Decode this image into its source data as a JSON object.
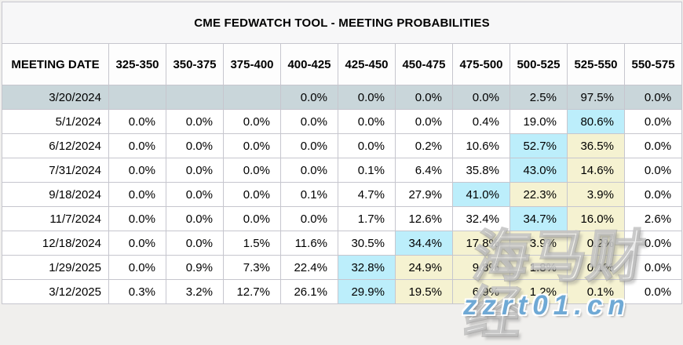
{
  "title": "CME FEDWATCH TOOL - MEETING PROBABILITIES",
  "columns": [
    "MEETING DATE",
    "325-350",
    "350-375",
    "375-400",
    "400-425",
    "425-450",
    "450-475",
    "475-500",
    "500-525",
    "525-550",
    "550-575"
  ],
  "rows": [
    {
      "date": "3/20/2024",
      "selected": true,
      "values": [
        "",
        "",
        "",
        "0.0%",
        "0.0%",
        "0.0%",
        "0.0%",
        "2.5%",
        "97.5%",
        "0.0%"
      ],
      "highlights": [
        "",
        "",
        "",
        "",
        "",
        "",
        "",
        "",
        "",
        ""
      ]
    },
    {
      "date": "5/1/2024",
      "selected": false,
      "values": [
        "0.0%",
        "0.0%",
        "0.0%",
        "0.0%",
        "0.0%",
        "0.0%",
        "0.4%",
        "19.0%",
        "80.6%",
        "0.0%"
      ],
      "highlights": [
        "",
        "",
        "",
        "",
        "",
        "",
        "",
        "",
        "cyan",
        ""
      ]
    },
    {
      "date": "6/12/2024",
      "selected": false,
      "values": [
        "0.0%",
        "0.0%",
        "0.0%",
        "0.0%",
        "0.0%",
        "0.2%",
        "10.6%",
        "52.7%",
        "36.5%",
        "0.0%"
      ],
      "highlights": [
        "",
        "",
        "",
        "",
        "",
        "",
        "",
        "cyan",
        "yellow",
        ""
      ]
    },
    {
      "date": "7/31/2024",
      "selected": false,
      "values": [
        "0.0%",
        "0.0%",
        "0.0%",
        "0.0%",
        "0.1%",
        "6.4%",
        "35.8%",
        "43.0%",
        "14.6%",
        "0.0%"
      ],
      "highlights": [
        "",
        "",
        "",
        "",
        "",
        "",
        "",
        "cyan",
        "yellow",
        ""
      ]
    },
    {
      "date": "9/18/2024",
      "selected": false,
      "values": [
        "0.0%",
        "0.0%",
        "0.0%",
        "0.1%",
        "4.7%",
        "27.9%",
        "41.0%",
        "22.3%",
        "3.9%",
        "0.0%"
      ],
      "highlights": [
        "",
        "",
        "",
        "",
        "",
        "",
        "cyan",
        "yellow",
        "yellow",
        ""
      ]
    },
    {
      "date": "11/7/2024",
      "selected": false,
      "values": [
        "0.0%",
        "0.0%",
        "0.0%",
        "0.0%",
        "1.7%",
        "12.6%",
        "32.4%",
        "34.7%",
        "16.0%",
        "2.6%"
      ],
      "highlights": [
        "",
        "",
        "",
        "",
        "",
        "",
        "",
        "cyan",
        "yellow",
        ""
      ]
    },
    {
      "date": "12/18/2024",
      "selected": false,
      "values": [
        "0.0%",
        "0.0%",
        "1.5%",
        "11.6%",
        "30.5%",
        "34.4%",
        "17.8%",
        "3.9%",
        "0.2%",
        "0.0%"
      ],
      "highlights": [
        "",
        "",
        "",
        "",
        "",
        "cyan",
        "yellow",
        "yellow",
        "yellow",
        ""
      ]
    },
    {
      "date": "1/29/2025",
      "selected": false,
      "values": [
        "0.0%",
        "0.9%",
        "7.3%",
        "22.4%",
        "32.8%",
        "24.9%",
        "9.8%",
        "1.8%",
        "0.1%",
        "0.0%"
      ],
      "highlights": [
        "",
        "",
        "",
        "",
        "cyan",
        "yellow",
        "yellow",
        "yellow",
        "yellow",
        ""
      ]
    },
    {
      "date": "3/12/2025",
      "selected": false,
      "values": [
        "0.3%",
        "3.2%",
        "12.7%",
        "26.1%",
        "29.9%",
        "19.5%",
        "6.9%",
        "1.2%",
        "0.1%",
        "0.0%"
      ],
      "highlights": [
        "",
        "",
        "",
        "",
        "cyan",
        "yellow",
        "yellow",
        "yellow",
        "yellow",
        ""
      ]
    }
  ],
  "watermark": {
    "brand": "海马财经",
    "url": "zzrt01.cn"
  },
  "colors": {
    "selected_row": "#c9d6da",
    "highlight_cyan": "#bceefb",
    "highlight_yellow": "#f5f2d1",
    "border": "#c6c6ce",
    "page_background": "#f0efed",
    "title_background": "#f7f7f8",
    "watermark_blue": "#6fa9d5"
  },
  "chart_data": {
    "type": "table",
    "title": "CME FEDWATCH TOOL - MEETING PROBABILITIES",
    "columns": [
      "MEETING DATE",
      "325-350",
      "350-375",
      "375-400",
      "400-425",
      "425-450",
      "450-475",
      "475-500",
      "500-525",
      "525-550",
      "550-575"
    ],
    "unit": "percent probability",
    "rows": [
      [
        "3/20/2024",
        null,
        null,
        null,
        0.0,
        0.0,
        0.0,
        0.0,
        2.5,
        97.5,
        0.0
      ],
      [
        "5/1/2024",
        0.0,
        0.0,
        0.0,
        0.0,
        0.0,
        0.0,
        0.4,
        19.0,
        80.6,
        0.0
      ],
      [
        "6/12/2024",
        0.0,
        0.0,
        0.0,
        0.0,
        0.0,
        0.2,
        10.6,
        52.7,
        36.5,
        0.0
      ],
      [
        "7/31/2024",
        0.0,
        0.0,
        0.0,
        0.0,
        0.1,
        6.4,
        35.8,
        43.0,
        14.6,
        0.0
      ],
      [
        "9/18/2024",
        0.0,
        0.0,
        0.0,
        0.1,
        4.7,
        27.9,
        41.0,
        22.3,
        3.9,
        0.0
      ],
      [
        "11/7/2024",
        0.0,
        0.0,
        0.0,
        0.0,
        1.7,
        12.6,
        32.4,
        34.7,
        16.0,
        2.6
      ],
      [
        "12/18/2024",
        0.0,
        0.0,
        1.5,
        11.6,
        30.5,
        34.4,
        17.8,
        3.9,
        0.2,
        0.0
      ],
      [
        "1/29/2025",
        0.0,
        0.9,
        7.3,
        22.4,
        32.8,
        24.9,
        9.8,
        1.8,
        0.1,
        0.0
      ],
      [
        "3/12/2025",
        0.3,
        3.2,
        12.7,
        26.1,
        29.9,
        19.5,
        6.9,
        1.2,
        0.1,
        0.0
      ]
    ],
    "legend": {
      "cyan_cells": "highest probability in row",
      "yellow_cells": "secondary probability highlight",
      "gray_blue_row": "nearest meeting (3/20/2024)"
    }
  }
}
